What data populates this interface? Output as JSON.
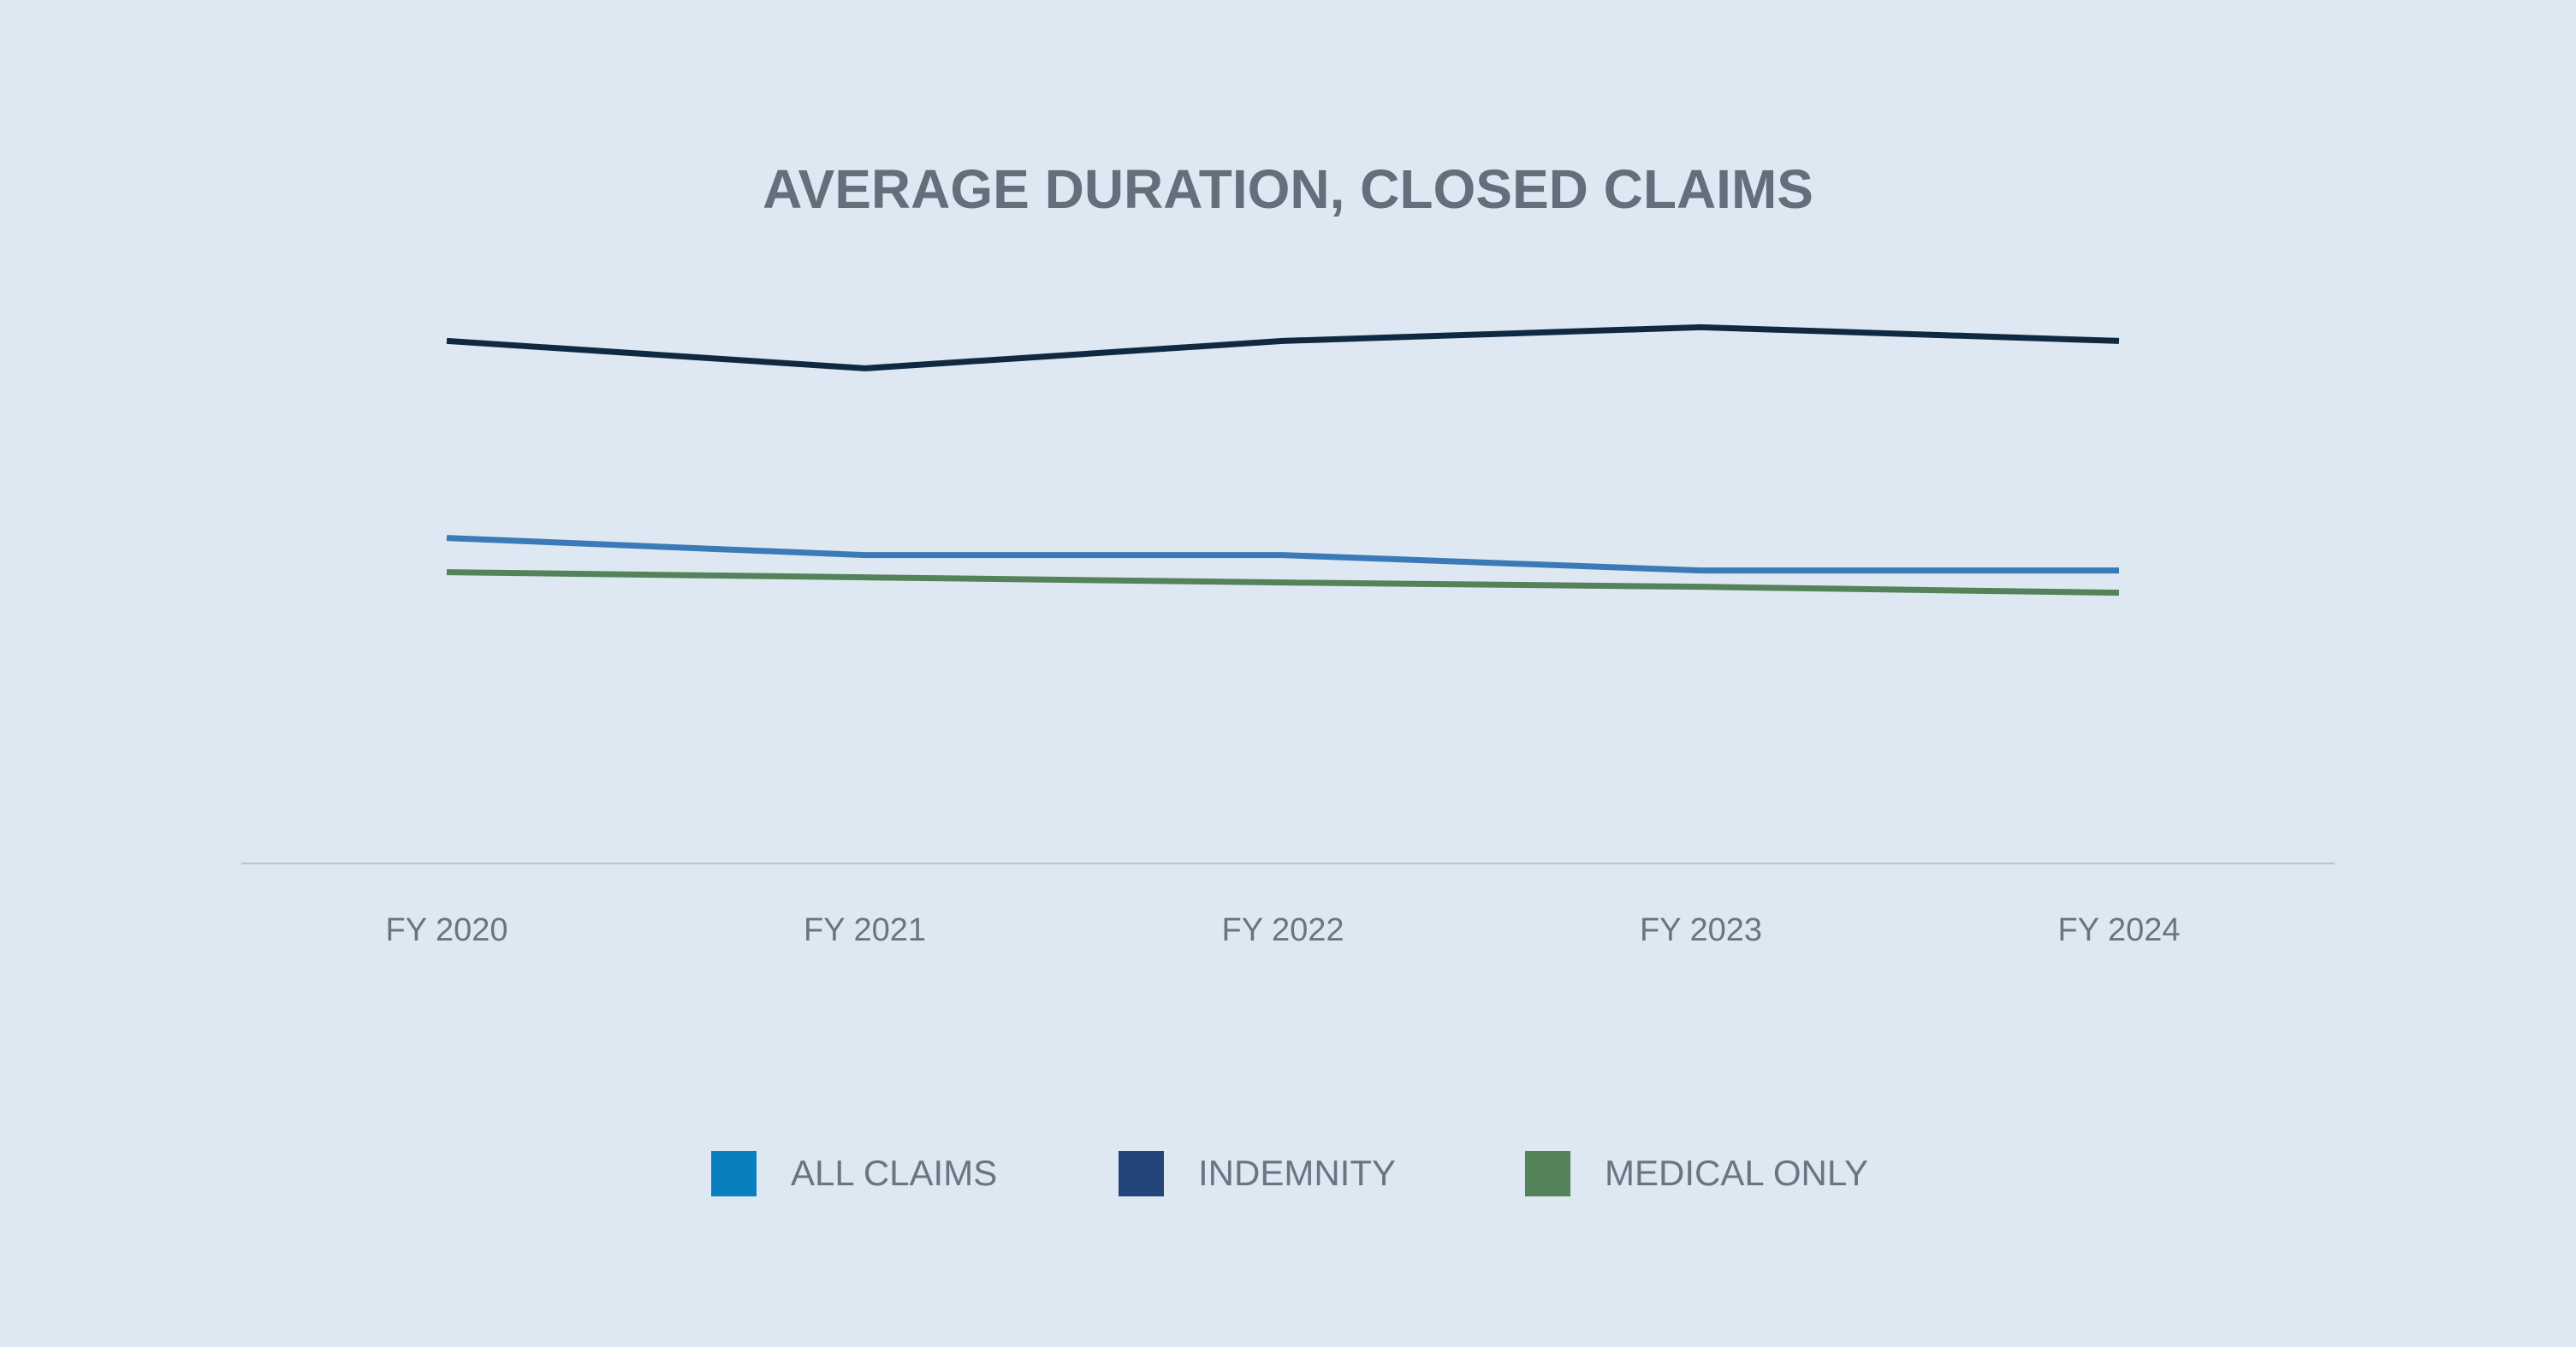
{
  "chart_data": {
    "type": "line",
    "title": "AVERAGE DURATION, CLOSED CLAIMS",
    "categories": [
      "FY 2020",
      "FY 2021",
      "FY 2022",
      "FY 2023",
      "FY 2024"
    ],
    "series": [
      {
        "name": "ALL CLAIMS",
        "color": "#3a7ab8",
        "legend_color": "#0a7fbf",
        "values": [
          38,
          36,
          36,
          34.2,
          34.2
        ]
      },
      {
        "name": "INDEMNITY",
        "color": "#0f2a40",
        "legend_color": "#22457a",
        "values": [
          61,
          57.8,
          61,
          62.6,
          61
        ]
      },
      {
        "name": "MEDICAL ONLY",
        "color": "#548259",
        "legend_color": "#548259",
        "values": [
          34,
          33.4,
          32.8,
          32.3,
          31.6
        ]
      }
    ],
    "ylim": [
      0,
      100
    ],
    "grid": false,
    "legend_position": "bottom"
  }
}
